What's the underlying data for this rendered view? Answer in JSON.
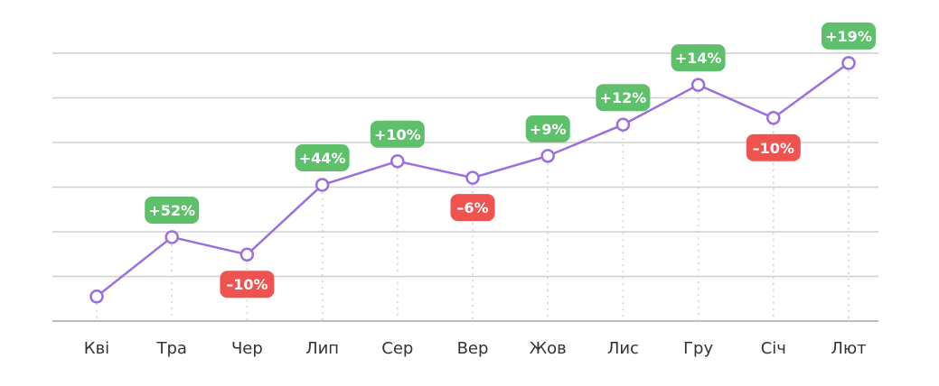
{
  "chart_data": {
    "type": "line",
    "title": "",
    "xlabel": "",
    "ylabel": "",
    "ylim": [
      0,
      6
    ],
    "grid": true,
    "categories": [
      "Кві",
      "Тра",
      "Чер",
      "Лип",
      "Сер",
      "Вер",
      "Жов",
      "Лис",
      "Гру",
      "Січ",
      "Лют"
    ],
    "values": [
      0.55,
      1.88,
      1.49,
      3.05,
      3.58,
      3.21,
      3.7,
      4.4,
      5.29,
      4.55,
      5.78
    ],
    "annotations": [
      null,
      "+52%",
      "–10%",
      "+44%",
      "+10%",
      "–6%",
      "+9%",
      "+12%",
      "+14%",
      "–10%",
      "+19%"
    ],
    "colors": {
      "line": "#9b6fe0",
      "positive": "#5fc06c",
      "negative": "#ef5350",
      "grid": "#cfcfcf"
    }
  }
}
